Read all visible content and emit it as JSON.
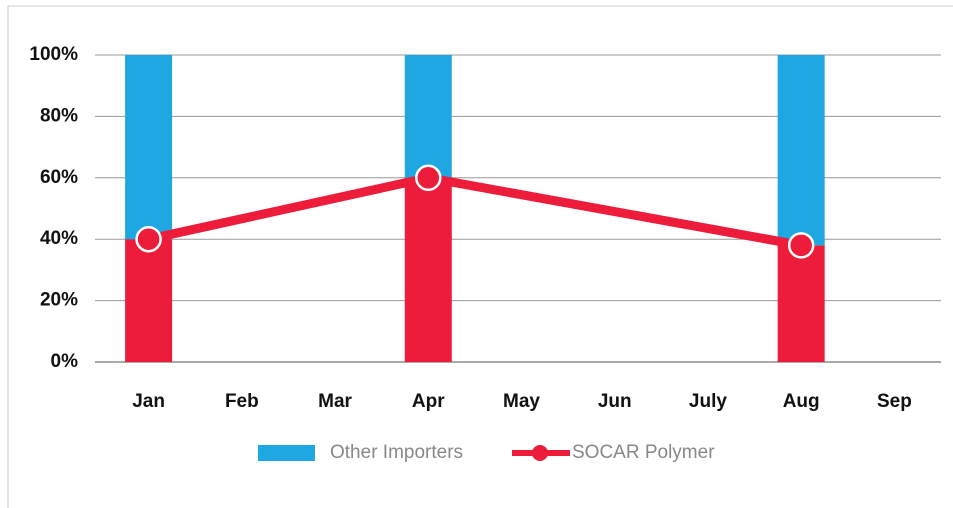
{
  "chart_data": {
    "type": "bar-line",
    "categories": [
      "Jan",
      "Feb",
      "Mar",
      "Apr",
      "May",
      "Jun",
      "July",
      "Aug",
      "Sep"
    ],
    "series": [
      {
        "name": "SOCAR Polymer",
        "color": "#ec1c3a",
        "values": [
          40,
          null,
          null,
          60,
          null,
          null,
          null,
          38,
          null
        ]
      },
      {
        "name": "Other Importers",
        "color": "#1ea7e1",
        "values": [
          60,
          null,
          null,
          40,
          null,
          null,
          null,
          62,
          null
        ]
      }
    ],
    "stacked": true,
    "span_gaps": true,
    "ylim": [
      0,
      100
    ],
    "yticks": [
      {
        "value": 0,
        "label": "0%"
      },
      {
        "value": 20,
        "label": "20%"
      },
      {
        "value": 40,
        "label": "40%"
      },
      {
        "value": 60,
        "label": "60%"
      },
      {
        "value": 80,
        "label": "80%"
      },
      {
        "value": 100,
        "label": "100%"
      }
    ],
    "grid": true,
    "legend": "bottom"
  }
}
